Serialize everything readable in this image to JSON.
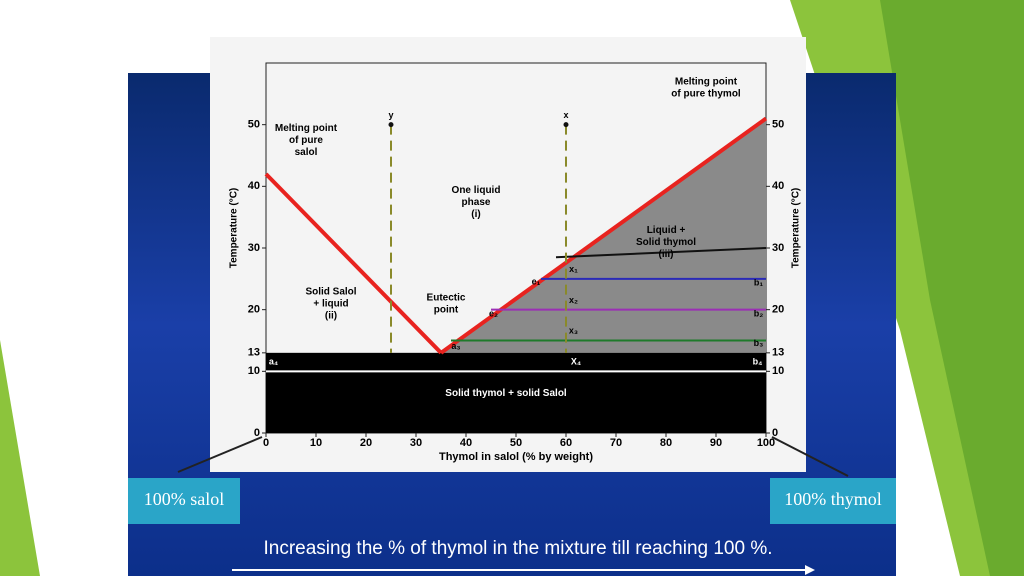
{
  "chart_data": {
    "type": "line",
    "x_label": "Thymol in salol (% by weight)",
    "y_label": "Temperature (°C)",
    "xlim": [
      0,
      100
    ],
    "ylim": [
      0,
      60
    ],
    "xticks": [
      0,
      10,
      20,
      30,
      40,
      50,
      60,
      70,
      80,
      90,
      100
    ],
    "yticks": [
      0,
      10,
      13,
      20,
      30,
      40,
      50
    ],
    "series": [
      {
        "color": "#e8231f",
        "x": [
          0,
          35
        ],
        "values": [
          42,
          13
        ]
      },
      {
        "color": "#e8231f",
        "x": [
          35,
          100
        ],
        "values": [
          13,
          51
        ]
      },
      {
        "color": "#111111",
        "x": [
          58,
          100
        ],
        "values": [
          28.5,
          30
        ]
      },
      {
        "color": "#2a2ab8",
        "x": [
          55,
          100
        ],
        "values": [
          25,
          25
        ]
      },
      {
        "color": "#9b2fb5",
        "x": [
          45,
          100
        ],
        "values": [
          20,
          20
        ]
      },
      {
        "color": "#1e7a2a",
        "x": [
          37,
          100
        ],
        "values": [
          15,
          15
        ]
      },
      {
        "color": "#ffffff",
        "x": [
          0,
          100
        ],
        "values": [
          10,
          10
        ]
      },
      {
        "color": "#8a8a2a",
        "dashed": true,
        "x": [
          25,
          25
        ],
        "values": [
          50,
          13
        ]
      },
      {
        "color": "#8a8a2a",
        "dashed": true,
        "x": [
          60,
          60
        ],
        "values": [
          50,
          13
        ]
      }
    ],
    "annotations": [
      {
        "lines": [
          "Melting point",
          "of pure",
          "salol"
        ],
        "x": 8,
        "y": 47.5,
        "color": "#000"
      },
      {
        "lines": [
          "Melting point",
          "of pure thymol"
        ],
        "x": 88,
        "y": 56,
        "color": "#000"
      },
      {
        "lines": [
          "One liquid",
          "phase",
          "(i)"
        ],
        "x": 42,
        "y": 37.5,
        "color": "#000"
      },
      {
        "lines": [
          "Liquid +",
          "Solid thymol",
          "(iii)"
        ],
        "x": 80,
        "y": 31,
        "color": "#000"
      },
      {
        "lines": [
          "Solid Salol",
          "+ liquid",
          "(ii)"
        ],
        "x": 13,
        "y": 21,
        "color": "#000"
      },
      {
        "lines": [
          "Eutectic",
          "point"
        ],
        "x": 36,
        "y": 21,
        "color": "#000"
      },
      {
        "lines": [
          "Solid thymol + solid Salol"
        ],
        "x": 48,
        "y": 6.5,
        "color": "#fff"
      }
    ],
    "point_labels": [
      {
        "text": "y",
        "x": 25,
        "y": 51.5,
        "color": "#000"
      },
      {
        "text": "x",
        "x": 60,
        "y": 51.5,
        "color": "#000"
      },
      {
        "text": "x₁",
        "x": 61.5,
        "y": 26.5,
        "color": "#000"
      },
      {
        "text": "e₁",
        "x": 54,
        "y": 24.5,
        "color": "#000"
      },
      {
        "text": "b₁",
        "x": 98.5,
        "y": 24.3,
        "color": "#000"
      },
      {
        "text": "x₂",
        "x": 61.5,
        "y": 21.5,
        "color": "#000"
      },
      {
        "text": "e₂",
        "x": 45.5,
        "y": 19.3,
        "color": "#000"
      },
      {
        "text": "b₂",
        "x": 98.5,
        "y": 19.3,
        "color": "#000"
      },
      {
        "text": "x₃",
        "x": 61.5,
        "y": 16.5,
        "color": "#000"
      },
      {
        "text": "a₃",
        "x": 38,
        "y": 14,
        "color": "#000"
      },
      {
        "text": "b₃",
        "x": 98.5,
        "y": 14.5,
        "color": "#000"
      },
      {
        "text": "a₄",
        "x": 1.5,
        "y": 11.5,
        "color": "#fff"
      },
      {
        "text": "X₄",
        "x": 62,
        "y": 11.5,
        "color": "#fff"
      },
      {
        "text": "b₄",
        "x": 98.3,
        "y": 11.5,
        "color": "#fff"
      }
    ]
  },
  "slide": {
    "left_box": "100% salol",
    "right_box": "100% thymol",
    "caption": "Increasing  the % of  thymol  in the mixture till reaching 100 %."
  }
}
